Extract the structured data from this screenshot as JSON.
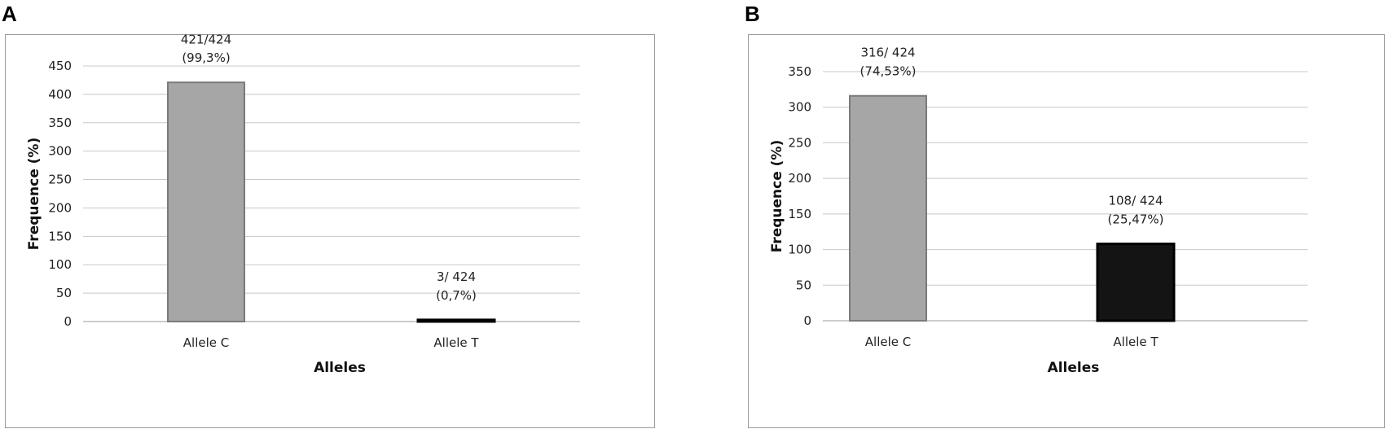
{
  "panels": {
    "a": {
      "letter": "A"
    },
    "b": {
      "letter": "B"
    }
  },
  "chart_data": [
    {
      "type": "bar",
      "panel": "A",
      "categories": [
        "Allele C",
        "Allele T"
      ],
      "values": [
        421,
        3
      ],
      "data_labels": [
        [
          "421/424",
          "(99,3%)"
        ],
        [
          "3/ 424",
          "(0,7%)"
        ]
      ],
      "bar_colors": [
        "#a6a6a6",
        "#141414"
      ],
      "xlabel": "Alleles",
      "ylabel": "Frequence (%)",
      "ylim": [
        0,
        450
      ],
      "yticks": [
        0,
        50,
        100,
        150,
        200,
        250,
        300,
        350,
        400,
        450
      ],
      "grid": true,
      "legend": "none"
    },
    {
      "type": "bar",
      "panel": "B",
      "categories": [
        "Allele C",
        "Allele T"
      ],
      "values": [
        316,
        108
      ],
      "data_labels": [
        [
          "316/ 424",
          "(74,53%)"
        ],
        [
          "108/ 424",
          "(25,47%)"
        ]
      ],
      "bar_colors": [
        "#a6a6a6",
        "#141414"
      ],
      "xlabel": "Alleles",
      "ylabel": "Frequence (%)",
      "ylim": [
        0,
        350
      ],
      "yticks": [
        0,
        50,
        100,
        150,
        200,
        250,
        300,
        350
      ],
      "grid": true,
      "legend": "none"
    }
  ]
}
